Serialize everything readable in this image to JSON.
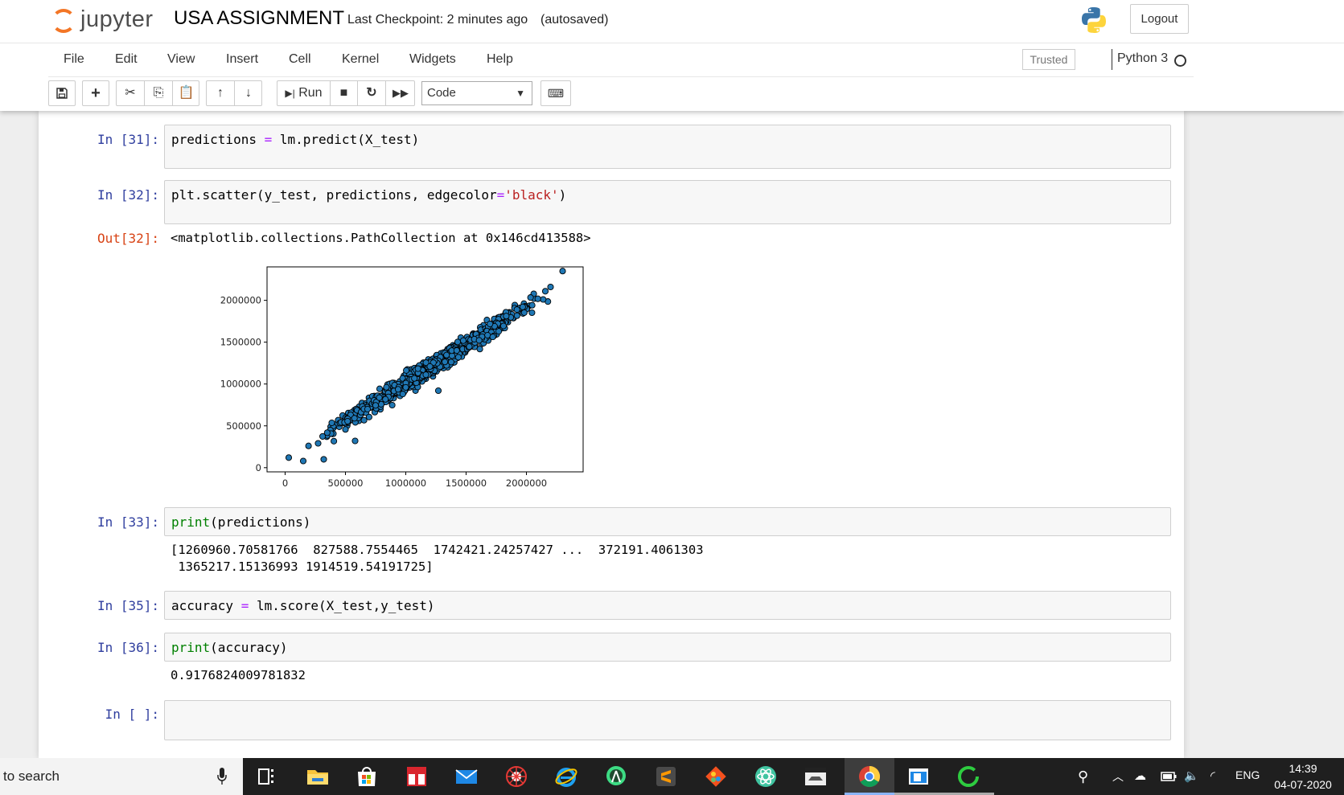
{
  "app": {
    "logo_text": "jupyter",
    "notebook_title": "USA ASSIGNMENT",
    "checkpoint": "Last Checkpoint: 2 minutes ago",
    "autosave": "(autosaved)",
    "logout_label": "Logout"
  },
  "menu": {
    "items": [
      "File",
      "Edit",
      "View",
      "Insert",
      "Cell",
      "Kernel",
      "Widgets",
      "Help"
    ],
    "trusted": "Trusted",
    "kernel": "Python 3"
  },
  "toolbar": {
    "run_label": "Run",
    "cell_type": "Code"
  },
  "cells": [
    {
      "prompt": "In [31]:",
      "code": "predictions = lm.predict(X_test)"
    },
    {
      "prompt": "In [32]:",
      "code": "plt.scatter(y_test, predictions, edgecolor='black')",
      "out_prompt": "Out[32]:",
      "output": "<matplotlib.collections.PathCollection at 0x146cd413588>"
    },
    {
      "prompt": "In [33]:",
      "code": "print(predictions)",
      "output_line1": "[1260960.70581766  827588.7554465  1742421.24257427 ...  372191.4061303",
      "output_line2": " 1365217.15136993 1914519.54191725]"
    },
    {
      "prompt": "In [35]:",
      "code": "accuracy = lm.score(X_test,y_test)"
    },
    {
      "prompt": "In [36]:",
      "code": "print(accuracy)",
      "output": "0.9176824009781832"
    },
    {
      "prompt": "In [ ]:"
    }
  ],
  "chart_data": {
    "type": "scatter",
    "xlim": [
      -150000,
      2470000
    ],
    "ylim": [
      -50000,
      2400000
    ],
    "xticks": [
      0,
      500000,
      1000000,
      1500000,
      2000000
    ],
    "yticks": [
      0,
      500000,
      1000000,
      1500000,
      2000000
    ],
    "xtick_labels": [
      "0",
      "500000",
      "1000000",
      "1500000",
      "2000000"
    ],
    "ytick_labels": [
      "0",
      "500000",
      "1000000",
      "1500000",
      "2000000"
    ],
    "point_color": "#1f77b4",
    "edge_color": "#000000",
    "trend": {
      "slope": 0.92,
      "intercept": 90000
    },
    "notable_points": [
      [
        30000,
        120000
      ],
      [
        150000,
        80000
      ],
      [
        320000,
        100000
      ],
      [
        580000,
        320000
      ],
      [
        1270000,
        920000
      ],
      [
        2300000,
        2350000
      ],
      [
        2200000,
        2160000
      ]
    ]
  },
  "taskbar": {
    "search_text": "to search",
    "tray_lang": "ENG",
    "time": "14:39",
    "date": "04-07-2020"
  }
}
